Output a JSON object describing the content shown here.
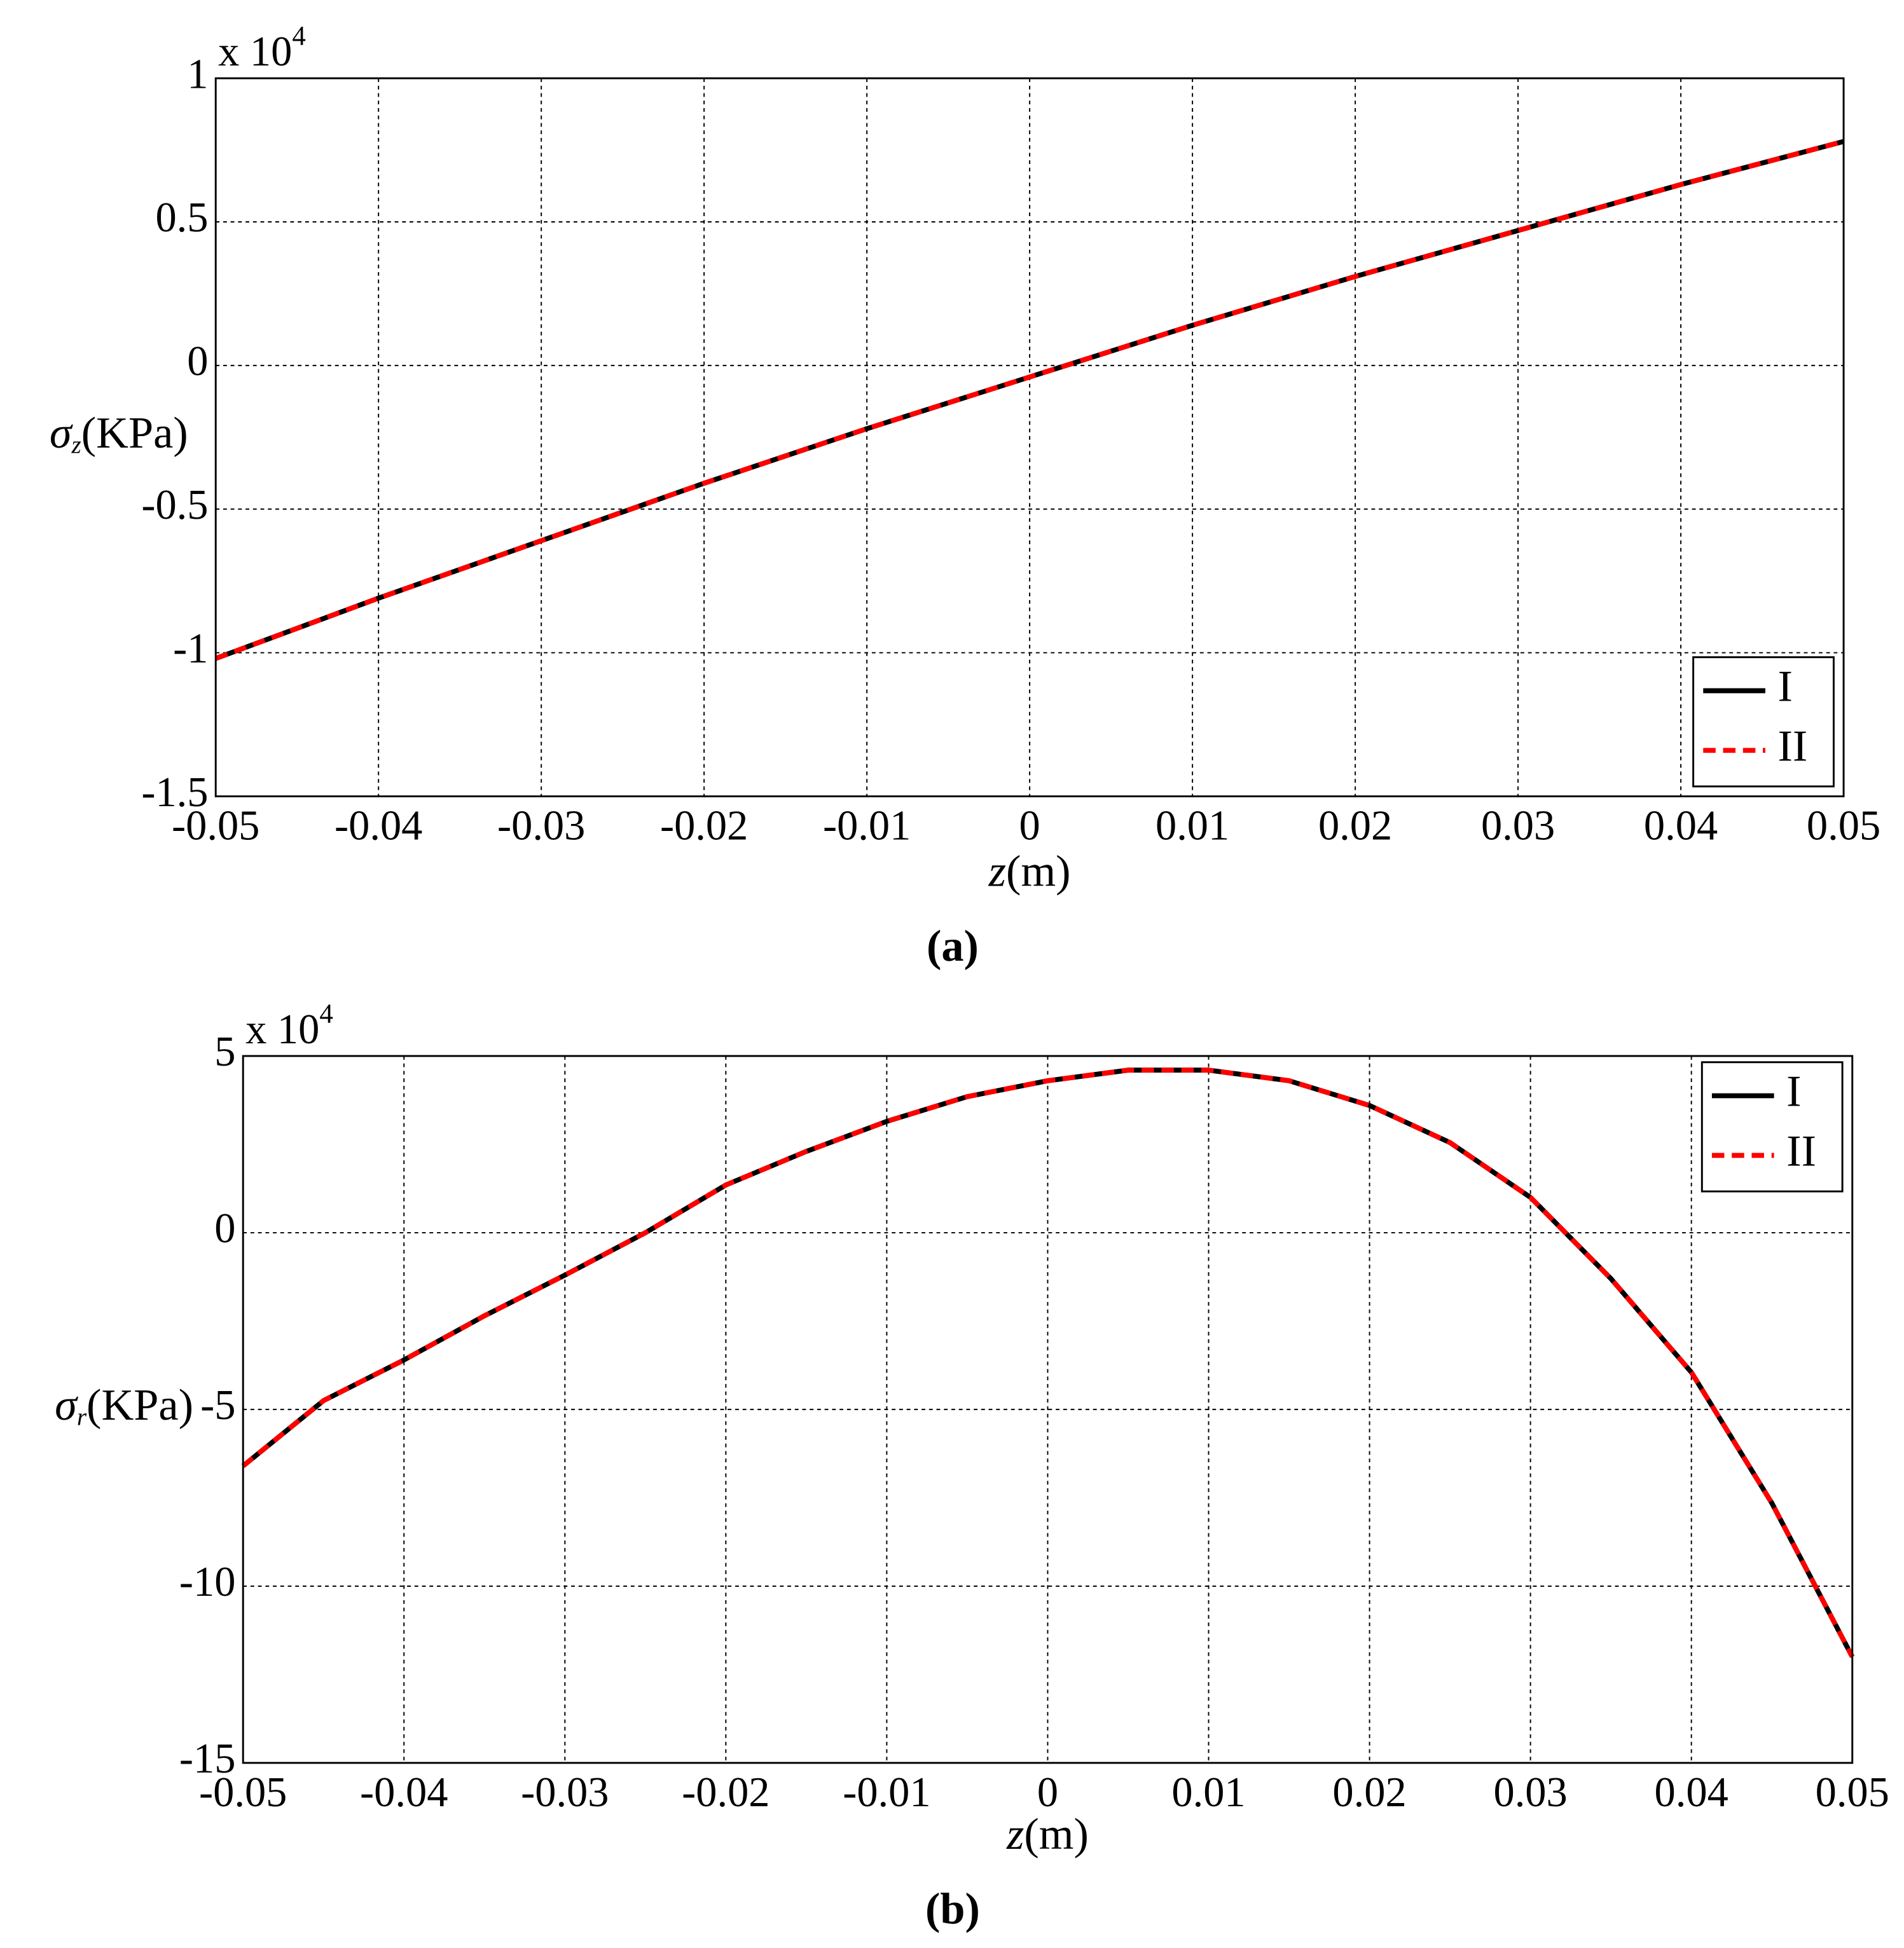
{
  "chart_data": [
    {
      "type": "line",
      "multiplier": "x 10",
      "multiplier_exponent": "4",
      "ylabel_symbol": "σ",
      "ylabel_subscript": "z",
      "ylabel_unit": "(KPa)",
      "xlabel_symbol": "z",
      "xlabel_unit": "(m)",
      "caption": "(a)",
      "x": [
        -0.05,
        -0.04,
        -0.03,
        -0.02,
        -0.01,
        0,
        0.01,
        0.02,
        0.03,
        0.04,
        0.05
      ],
      "series": [
        {
          "name": "I",
          "color": "#000000",
          "style": "solid",
          "values": [
            -1.02,
            -0.81,
            -0.61,
            -0.41,
            -0.22,
            -0.04,
            0.14,
            0.31,
            0.47,
            0.63,
            0.78
          ]
        },
        {
          "name": "II",
          "color": "#ff0000",
          "style": "dashed",
          "values": [
            -1.02,
            -0.81,
            -0.61,
            -0.41,
            -0.22,
            -0.04,
            0.14,
            0.31,
            0.47,
            0.63,
            0.78
          ]
        }
      ],
      "xlim": [
        -0.05,
        0.05
      ],
      "xticks": [
        -0.05,
        -0.04,
        -0.03,
        -0.02,
        -0.01,
        0,
        0.01,
        0.02,
        0.03,
        0.04,
        0.05
      ],
      "ylim": [
        -1.5,
        1
      ],
      "yticks": [
        -1.5,
        -1,
        -0.5,
        0,
        0.5,
        1
      ],
      "grid": true,
      "legend": "lower right"
    },
    {
      "type": "line",
      "multiplier": "x 10",
      "multiplier_exponent": "4",
      "ylabel_symbol": "σ",
      "ylabel_subscript": "r",
      "ylabel_unit": "(KPa)",
      "xlabel_symbol": "z",
      "xlabel_unit": "(m)",
      "caption": "(b)",
      "x": [
        -0.05,
        -0.045,
        -0.04,
        -0.035,
        -0.03,
        -0.025,
        -0.02,
        -0.015,
        -0.01,
        -0.005,
        0,
        0.005,
        0.01,
        0.015,
        0.02,
        0.025,
        0.03,
        0.035,
        0.04,
        0.045,
        0.05
      ],
      "series": [
        {
          "name": "I",
          "color": "#000000",
          "style": "solid",
          "values": [
            -6.6,
            -4.75,
            -3.6,
            -2.35,
            -1.2,
            0.0,
            1.35,
            2.3,
            3.15,
            3.85,
            4.3,
            4.6,
            4.6,
            4.3,
            3.6,
            2.55,
            1.0,
            -1.3,
            -3.95,
            -7.65,
            -12.0
          ]
        },
        {
          "name": "II",
          "color": "#ff0000",
          "style": "dashed",
          "values": [
            -6.6,
            -4.75,
            -3.6,
            -2.35,
            -1.2,
            0.0,
            1.35,
            2.3,
            3.15,
            3.85,
            4.3,
            4.6,
            4.6,
            4.3,
            3.6,
            2.55,
            1.0,
            -1.3,
            -3.95,
            -7.65,
            -12.0
          ]
        }
      ],
      "xlim": [
        -0.05,
        0.05
      ],
      "xticks": [
        -0.05,
        -0.04,
        -0.03,
        -0.02,
        -0.01,
        0,
        0.01,
        0.02,
        0.03,
        0.04,
        0.05
      ],
      "ylim": [
        -15,
        5
      ],
      "yticks": [
        -15,
        -10,
        -5,
        0,
        5
      ],
      "grid": true,
      "legend": "upper right"
    }
  ]
}
